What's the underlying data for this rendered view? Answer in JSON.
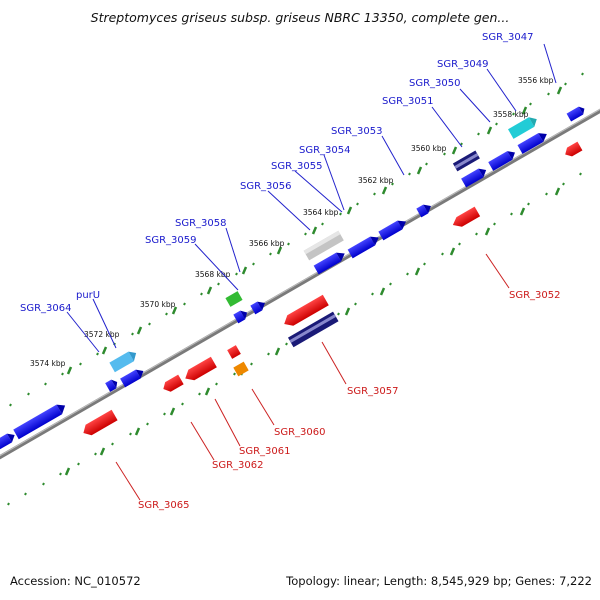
{
  "title": "Streptomyces griseus subsp. griseus NBRC 13350, complete gen...",
  "footer": {
    "accession": "Accession: NC_010572",
    "summary": "Topology: linear; Length: 8,545,929 bp; Genes: 7,222"
  },
  "colors": {
    "forward_gene": "#1a1ae6",
    "reverse_gene": "#e61a1a",
    "forward_label": "#1a1acc",
    "reverse_label": "#cc1a1a",
    "backbone": "#808080",
    "tick": "#2e8b2e",
    "gray_gene": "#b0b0b0",
    "cyan_gene": "#33dde0",
    "light_blue_gene": "#55bbee",
    "green_gene": "#33bb33",
    "orange_gene": "#ee8800",
    "purple_gene": "#6666bb",
    "dark_blue_gene": "#1a1a88"
  },
  "kbp_labels": [
    "3556 kbp",
    "3558 kbp",
    "3560 kbp",
    "3562 kbp",
    "3564 kbp",
    "3566 kbp",
    "3568 kbp",
    "3570 kbp",
    "3572 kbp",
    "3574 kbp"
  ],
  "forward_gene_labels": [
    "SGR_3047",
    "SGR_3049",
    "SGR_3050",
    "SGR_3051",
    "SGR_3053",
    "SGR_3054",
    "SGR_3055",
    "SGR_3056",
    "SGR_3058",
    "SGR_3059",
    "purU",
    "SGR_3064"
  ],
  "reverse_gene_labels": [
    "SGR_3052",
    "SGR_3057",
    "SGR_3060",
    "SGR_3061",
    "SGR_3062",
    "SGR_3065"
  ]
}
